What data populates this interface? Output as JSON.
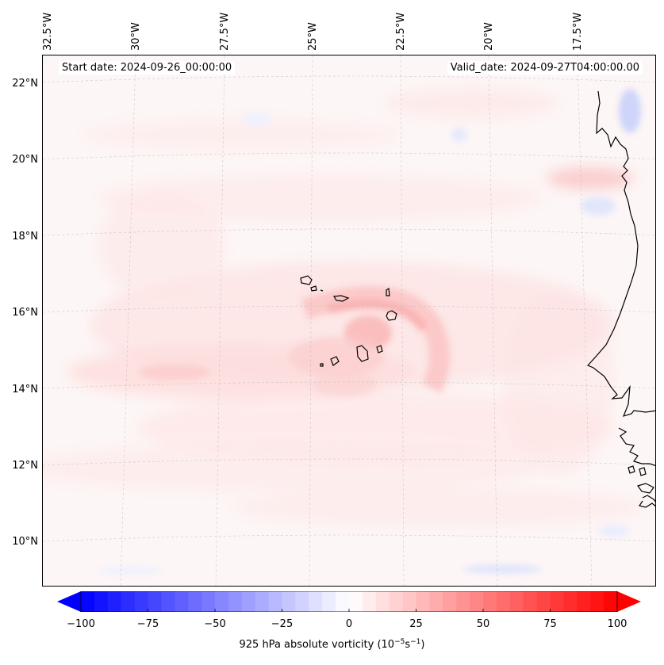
{
  "map": {
    "start_date_label": "Start date: 2024-09-26_00:00:00",
    "valid_date_label": "Valid_date: 2024-09-27T04:00:00.00",
    "longitude_labels": [
      "32.5°W",
      "30°W",
      "27.5°W",
      "25°W",
      "22.5°W",
      "20°W",
      "17.5°W"
    ],
    "latitude_labels": [
      "22°N",
      "20°N",
      "18°N",
      "16°N",
      "14°N",
      "12°N",
      "10°N"
    ],
    "features": [
      "Cabo Verde islands",
      "West Africa coastline"
    ]
  },
  "colorbar": {
    "title_prefix": "925 hPa absolute vorticity (10",
    "exp1": "−5",
    "s_text": "s",
    "exp2": "−1",
    "title_suffix": ")",
    "ticks": [
      "−100",
      "−75",
      "−50",
      "−25",
      "0",
      "25",
      "50",
      "75",
      "100"
    ],
    "tick_values": [
      -100,
      -75,
      -50,
      -25,
      0,
      25,
      50,
      75,
      100
    ],
    "min": -100,
    "max": 100,
    "colormap": "bwr",
    "color_low": "#0000ff",
    "color_mid": "#ffffff",
    "color_high": "#ff0000"
  }
}
